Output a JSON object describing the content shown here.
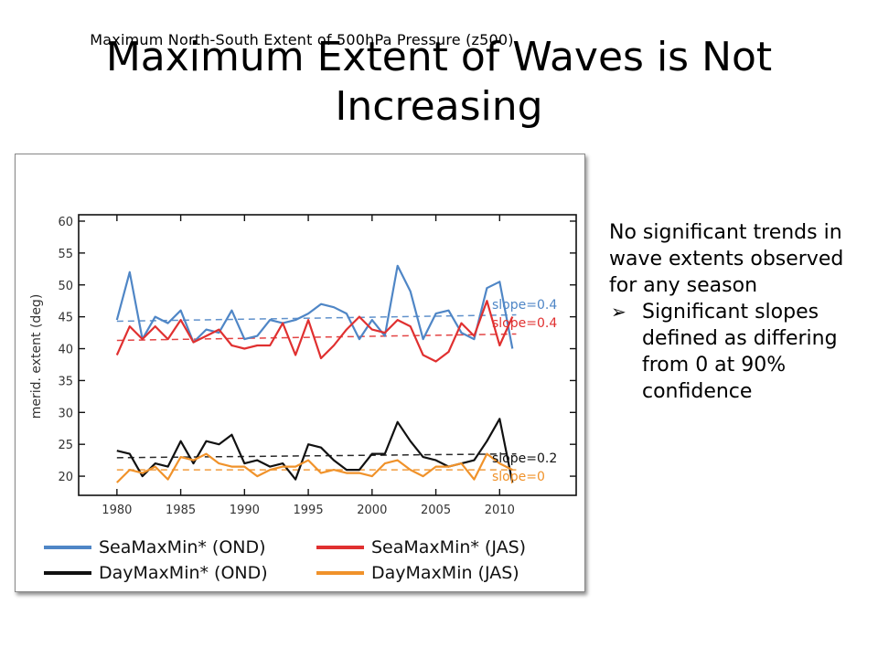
{
  "slide": {
    "title": "Maximum Extent of Waves is Not Increasing"
  },
  "text_panel": {
    "lead": "No significant trends in wave extents observed for any season",
    "bullet": "Significant slopes defined as differing from 0 at 90% confidence",
    "bullet_glyph": "➢"
  },
  "chart_data": {
    "type": "line",
    "title": "Maximum North-South Extent of 500hPa Pressure (z500)",
    "ylabel": "merid. extent (deg)",
    "xlabel": "",
    "xlim": [
      1977,
      2016
    ],
    "ylim": [
      17,
      61
    ],
    "xticks": [
      1980,
      1985,
      1990,
      1995,
      2000,
      2005,
      2010
    ],
    "yticks": [
      20,
      25,
      30,
      35,
      40,
      45,
      50,
      55,
      60
    ],
    "grid": false,
    "legend_placement": "bottom",
    "x": [
      1980,
      1981,
      1982,
      1983,
      1984,
      1985,
      1986,
      1987,
      1988,
      1989,
      1990,
      1991,
      1992,
      1993,
      1994,
      1995,
      1996,
      1997,
      1998,
      1999,
      2000,
      2001,
      2002,
      2003,
      2004,
      2005,
      2006,
      2007,
      2008,
      2009,
      2010,
      2011
    ],
    "series": [
      {
        "name": "SeaMaxMin* (OND)",
        "color": "#4f86c6",
        "values": [
          44.5,
          52,
          41.5,
          45,
          44,
          46,
          41,
          43,
          42.5,
          46,
          41.5,
          42,
          44.5,
          44,
          44.5,
          45.5,
          47,
          46.5,
          45.5,
          41.5,
          44.5,
          42,
          53,
          49,
          41.5,
          45.5,
          46,
          42.5,
          41.5,
          49.5,
          50.5,
          40
        ],
        "trend": [
          44.3,
          45.3
        ],
        "slope_label": "slope=0.4"
      },
      {
        "name": "SeaMaxMin* (JAS)",
        "color": "#e03030",
        "values": [
          39,
          43.5,
          41.5,
          43.5,
          41.5,
          44.5,
          41,
          42,
          43,
          40.5,
          40,
          40.5,
          40.5,
          44,
          39,
          44.5,
          38.5,
          40.5,
          43,
          45,
          43,
          42.5,
          44.5,
          43.5,
          39,
          38,
          39.5,
          44,
          42,
          47.5,
          40.5,
          45
        ],
        "trend": [
          41.3,
          42.3
        ],
        "slope_label": "slope=0.4"
      },
      {
        "name": "DayMaxMin* (OND)",
        "color": "#111111",
        "values": [
          24,
          23.5,
          20,
          22,
          21.5,
          25.5,
          22,
          25.5,
          25,
          26.5,
          22,
          22.5,
          21.5,
          22,
          19.5,
          25,
          24.5,
          22.5,
          21,
          21,
          23.5,
          23.5,
          28.5,
          25.5,
          23,
          22.5,
          21.5,
          22,
          22.5,
          25.5,
          29,
          19
        ],
        "trend": [
          22.9,
          23.5
        ],
        "slope_label": "slope=0.2"
      },
      {
        "name": "DayMaxMin (JAS)",
        "color": "#f0922a",
        "values": [
          19,
          21,
          20.5,
          21.5,
          19.5,
          23,
          22.5,
          23.5,
          22,
          21.5,
          21.5,
          20,
          21,
          21.5,
          21.5,
          22.5,
          20.5,
          21,
          20.5,
          20.5,
          20,
          22,
          22.5,
          21,
          20,
          21.5,
          21.5,
          22,
          19.5,
          23.5,
          22,
          21
        ],
        "trend": [
          21,
          21
        ],
        "slope_label": "slope=0"
      }
    ]
  }
}
